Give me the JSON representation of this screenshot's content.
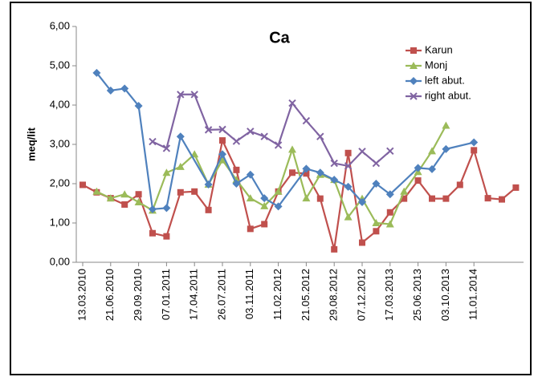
{
  "chart_data": {
    "type": "line",
    "title": "Ca",
    "y_label": "meq/lit",
    "categories": [
      "13.03.2010",
      null,
      "21.06.2010",
      null,
      "29.09.2010",
      null,
      "07.01.2011",
      null,
      "17.04.2011",
      null,
      "26.07.2011",
      null,
      "03.11.2011",
      null,
      "11.02.2012",
      null,
      "21.05.2012",
      null,
      "29.08.2012",
      null,
      "07.12.2012",
      null,
      "17.03.2013",
      null,
      "25.06.2013",
      null,
      "03.10.2013",
      null,
      "11.01.2014",
      null,
      null,
      null
    ],
    "series": [
      {
        "name": "Karun",
        "color": "#c0504d",
        "marker": "square",
        "values": [
          1.97,
          1.78,
          1.63,
          1.47,
          1.73,
          0.74,
          0.66,
          1.78,
          1.8,
          1.33,
          3.1,
          2.35,
          0.85,
          0.97,
          1.8,
          2.28,
          2.26,
          1.62,
          0.33,
          2.78,
          0.5,
          0.79,
          1.27,
          1.62,
          2.08,
          1.62,
          1.62,
          1.97,
          2.85,
          1.63,
          1.6,
          1.9
        ]
      },
      {
        "name": "Monj",
        "color": "#9bbb59",
        "marker": "triangle",
        "values": [
          null,
          1.8,
          1.63,
          1.73,
          1.53,
          1.32,
          2.28,
          2.43,
          2.75,
          1.98,
          2.6,
          2.1,
          1.63,
          1.43,
          1.8,
          2.87,
          1.63,
          2.23,
          2.1,
          1.15,
          1.62,
          1.0,
          0.97,
          1.8,
          2.3,
          2.83,
          3.48,
          null,
          null,
          null,
          null,
          null
        ]
      },
      {
        "name": "left abut.",
        "color": "#4f81bd",
        "marker": "diamond",
        "values": [
          null,
          4.82,
          4.37,
          4.42,
          3.98,
          1.35,
          1.38,
          3.2,
          null,
          1.98,
          2.75,
          2.0,
          2.23,
          1.63,
          1.42,
          null,
          2.38,
          2.28,
          2.1,
          1.92,
          1.53,
          2.0,
          1.73,
          null,
          2.4,
          2.37,
          2.88,
          null,
          3.05,
          null,
          null,
          null
        ]
      },
      {
        "name": "right abut.",
        "color": "#8064a2",
        "marker": "x",
        "values": [
          null,
          null,
          null,
          null,
          null,
          3.07,
          2.9,
          4.27,
          4.27,
          3.37,
          3.38,
          3.08,
          3.33,
          3.2,
          2.98,
          4.05,
          3.6,
          3.2,
          2.52,
          2.45,
          2.82,
          2.52,
          2.83,
          null,
          null,
          null,
          null,
          null,
          null,
          null,
          null,
          null
        ]
      }
    ],
    "ylim": [
      0,
      6
    ],
    "yticks": [
      {
        "value": 0,
        "label": "0,00"
      },
      {
        "value": 1,
        "label": "1,00"
      },
      {
        "value": 2,
        "label": "2,00"
      },
      {
        "value": 3,
        "label": "3,00"
      },
      {
        "value": 4,
        "label": "4,00"
      },
      {
        "value": 5,
        "label": "5,00"
      },
      {
        "value": 6,
        "label": "6,00"
      }
    ],
    "connect_gaps": true,
    "legend": "top-right"
  }
}
